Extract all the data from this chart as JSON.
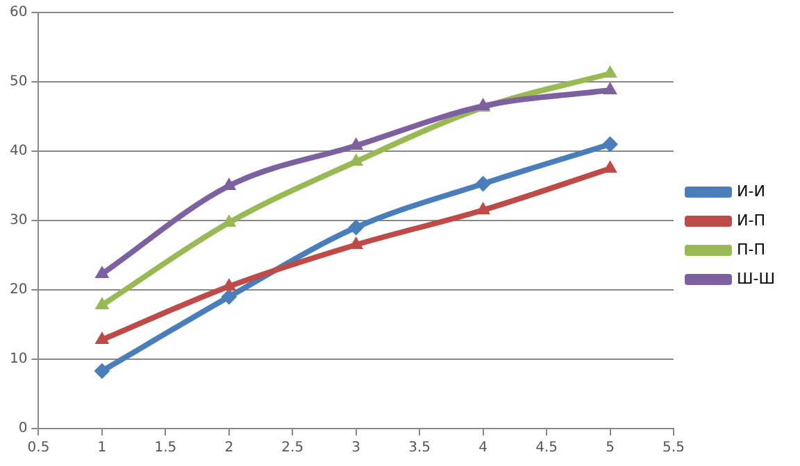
{
  "chart_data": {
    "type": "line",
    "xlim": [
      0.5,
      5.5
    ],
    "xticks": [
      0.5,
      1,
      1.5,
      2,
      2.5,
      3,
      3.5,
      4,
      4.5,
      5,
      5.5
    ],
    "ylim": [
      0,
      60
    ],
    "yticks": [
      0,
      10,
      20,
      30,
      40,
      50,
      60
    ],
    "grid": "y",
    "legend": "right",
    "x": [
      1,
      2,
      3,
      4,
      5
    ],
    "series": [
      {
        "name": "И-И",
        "color": "#4a7ebb",
        "marker": "diamond",
        "values": [
          8.3,
          19,
          29,
          35.3,
          41
        ]
      },
      {
        "name": "И-П",
        "color": "#be4b48",
        "marker": "triangle",
        "values": [
          12.8,
          20.5,
          26.5,
          31.5,
          37.5
        ]
      },
      {
        "name": "П-П",
        "color": "#98b954",
        "marker": "triangle",
        "values": [
          17.8,
          29.7,
          38.5,
          46.3,
          51.2
        ]
      },
      {
        "name": "Ш-Ш",
        "color": "#7d60a0",
        "marker": "triangle",
        "values": [
          22.3,
          35,
          40.8,
          46.5,
          48.8
        ]
      }
    ]
  }
}
